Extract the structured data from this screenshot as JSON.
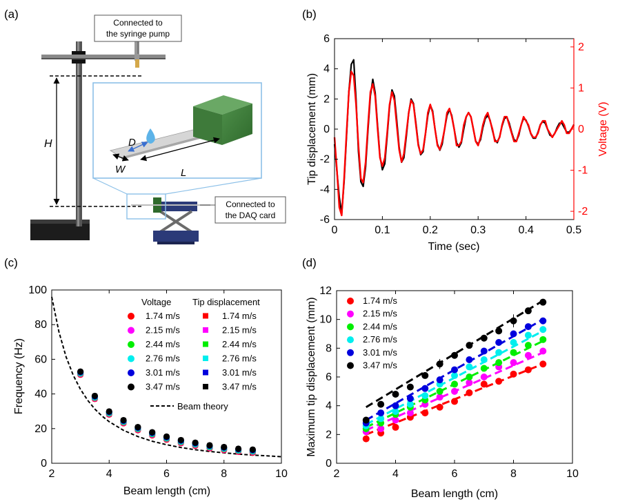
{
  "panel_labels": [
    "(a)",
    "(b)",
    "(c)",
    "(d)"
  ],
  "panel_a": {
    "callout_pump": [
      "Connected to",
      "the syringe pump"
    ],
    "callout_daq": [
      "Connected to",
      "the DAQ card"
    ],
    "label_H": "H",
    "label_D": "D",
    "label_L": "L",
    "label_W": "W"
  },
  "colors": {
    "red": "#ff0000",
    "magenta": "#ff00ff",
    "green": "#00ee00",
    "cyan": "#00eeee",
    "blue": "#0000dd",
    "black": "#000000"
  },
  "chart_data": [
    {
      "panel": "(b)",
      "type": "line",
      "xlabel": "Time (sec)",
      "ylabel": "Tip displacement (mm)",
      "ylabel_right": "Voltage (V)",
      "xlim": [
        0,
        0.5
      ],
      "ylim": [
        -6,
        6
      ],
      "ylim_right": [
        -2.2,
        2.2
      ],
      "xticks": [
        "0",
        "0.1",
        "0.2",
        "0.3",
        "0.4",
        "0.5"
      ],
      "yticks": [
        "-6",
        "-4",
        "-2",
        "0",
        "2",
        "4",
        "6"
      ],
      "yticks_right": [
        "-2",
        "-1",
        "0",
        "1",
        "2"
      ],
      "series": [
        {
          "axis": "left",
          "color": "#000000",
          "x": [
            0,
            0.005,
            0.01,
            0.015,
            0.02,
            0.025,
            0.03,
            0.035,
            0.04,
            0.045,
            0.05,
            0.055,
            0.06,
            0.065,
            0.07,
            0.075,
            0.08,
            0.085,
            0.09,
            0.095,
            0.1,
            0.105,
            0.11,
            0.115,
            0.12,
            0.125,
            0.13,
            0.135,
            0.14,
            0.145,
            0.15,
            0.155,
            0.16,
            0.165,
            0.17,
            0.175,
            0.18,
            0.185,
            0.19,
            0.195,
            0.2,
            0.205,
            0.21,
            0.215,
            0.22,
            0.225,
            0.23,
            0.235,
            0.24,
            0.245,
            0.25,
            0.255,
            0.26,
            0.265,
            0.27,
            0.275,
            0.28,
            0.285,
            0.29,
            0.295,
            0.3,
            0.305,
            0.31,
            0.315,
            0.32,
            0.325,
            0.33,
            0.335,
            0.34,
            0.345,
            0.35,
            0.355,
            0.36,
            0.365,
            0.37,
            0.375,
            0.38,
            0.385,
            0.39,
            0.395,
            0.4,
            0.405,
            0.41,
            0.415,
            0.42,
            0.425,
            0.43,
            0.435,
            0.44,
            0.445,
            0.45,
            0.455,
            0.46,
            0.465,
            0.47,
            0.475,
            0.48,
            0.485,
            0.49,
            0.495,
            0.5
          ],
          "y": [
            -1.0,
            -2.8,
            -4.5,
            -5.6,
            -3.5,
            -0.5,
            2.5,
            4.3,
            4.6,
            2.0,
            -1.5,
            -3.5,
            -3.8,
            -2.5,
            0.0,
            2.2,
            3.3,
            2.4,
            0.2,
            -1.8,
            -2.7,
            -2.3,
            -0.5,
            1.5,
            2.6,
            2.2,
            0.6,
            -1.2,
            -2.2,
            -1.9,
            -0.5,
            1.1,
            2.0,
            1.7,
            0.4,
            -1.0,
            -1.7,
            -1.5,
            -0.3,
            0.9,
            1.6,
            1.2,
            0.0,
            -1.0,
            -1.4,
            -1.0,
            0.0,
            0.9,
            1.3,
            0.9,
            0.0,
            -0.9,
            -1.2,
            -0.9,
            0.0,
            0.8,
            1.1,
            0.8,
            0.0,
            -0.8,
            -1.0,
            -0.7,
            0.1,
            0.7,
            0.9,
            0.6,
            -0.1,
            -0.7,
            -0.9,
            -0.5,
            0.2,
            0.7,
            0.8,
            0.4,
            -0.2,
            -0.7,
            -0.8,
            -0.4,
            0.3,
            0.7,
            0.6,
            0.2,
            -0.3,
            -0.6,
            -0.6,
            -0.2,
            0.3,
            0.5,
            0.4,
            0.0,
            -0.4,
            -0.5,
            -0.3,
            0.1,
            0.4,
            0.4,
            0.1,
            -0.2,
            -0.2,
            0.0,
            0.3
          ]
        },
        {
          "axis": "right",
          "color": "#ff0000",
          "x": [
            0,
            0.005,
            0.01,
            0.015,
            0.02,
            0.025,
            0.03,
            0.035,
            0.04,
            0.045,
            0.05,
            0.055,
            0.06,
            0.065,
            0.07,
            0.075,
            0.08,
            0.085,
            0.09,
            0.095,
            0.1,
            0.105,
            0.11,
            0.115,
            0.12,
            0.125,
            0.13,
            0.135,
            0.14,
            0.145,
            0.15,
            0.155,
            0.16,
            0.165,
            0.17,
            0.175,
            0.18,
            0.185,
            0.19,
            0.195,
            0.2,
            0.205,
            0.21,
            0.215,
            0.22,
            0.225,
            0.23,
            0.235,
            0.24,
            0.245,
            0.25,
            0.255,
            0.26,
            0.265,
            0.27,
            0.275,
            0.28,
            0.285,
            0.29,
            0.295,
            0.3,
            0.305,
            0.31,
            0.315,
            0.32,
            0.325,
            0.33,
            0.335,
            0.34,
            0.345,
            0.35,
            0.355,
            0.36,
            0.365,
            0.37,
            0.375,
            0.38,
            0.385,
            0.39,
            0.395,
            0.4,
            0.405,
            0.41,
            0.415,
            0.42,
            0.425,
            0.43,
            0.435,
            0.44,
            0.445,
            0.45,
            0.455,
            0.46,
            0.465,
            0.47,
            0.475,
            0.48,
            0.485,
            0.49,
            0.495,
            0.5
          ],
          "y": [
            -0.2,
            -1.0,
            -1.9,
            -2.1,
            -1.2,
            -0.1,
            0.9,
            1.4,
            1.3,
            0.6,
            -0.4,
            -1.2,
            -1.3,
            -0.8,
            0.1,
            0.9,
            1.1,
            0.8,
            0.0,
            -0.7,
            -0.9,
            -0.7,
            -0.1,
            0.6,
            0.9,
            0.7,
            0.1,
            -0.5,
            -0.8,
            -0.6,
            -0.1,
            0.4,
            0.7,
            0.6,
            0.1,
            -0.4,
            -0.6,
            -0.5,
            -0.1,
            0.4,
            0.6,
            0.4,
            0.0,
            -0.4,
            -0.5,
            -0.3,
            0.0,
            0.4,
            0.5,
            0.3,
            0.0,
            -0.4,
            -0.4,
            -0.3,
            0.1,
            0.3,
            0.4,
            0.3,
            0.0,
            -0.3,
            -0.4,
            -0.2,
            0.1,
            0.3,
            0.4,
            0.2,
            0.0,
            -0.3,
            -0.3,
            -0.2,
            0.1,
            0.3,
            0.3,
            0.1,
            -0.1,
            -0.3,
            -0.3,
            -0.1,
            0.1,
            0.3,
            0.2,
            0.1,
            -0.1,
            -0.2,
            -0.2,
            -0.1,
            0.1,
            0.2,
            0.2,
            0.0,
            -0.1,
            -0.2,
            -0.1,
            0.0,
            0.1,
            0.2,
            0.1,
            -0.1,
            -0.1,
            0.0,
            0.1
          ]
        }
      ]
    },
    {
      "panel": "(c)",
      "type": "scatter",
      "xlabel": "Beam length (cm)",
      "ylabel": "Frequency (Hz)",
      "xlim": [
        2,
        10
      ],
      "ylim": [
        0,
        100
      ],
      "xticks": [
        "2",
        "4",
        "6",
        "8",
        "10"
      ],
      "yticks": [
        "0",
        "20",
        "40",
        "60",
        "80",
        "100"
      ],
      "legend_headers": [
        "Voltage",
        "Tip displacement"
      ],
      "legend_speeds": [
        "1.74 m/s",
        "2.15 m/s",
        "2.44 m/s",
        "2.76 m/s",
        "3.01 m/s",
        "3.47 m/s"
      ],
      "beam_theory_label": "Beam theory",
      "beam_theory": {
        "x": [
          2,
          2.25,
          2.5,
          2.75,
          3,
          3.25,
          3.5,
          3.75,
          4,
          4.5,
          5,
          5.5,
          6,
          6.5,
          7,
          7.5,
          8,
          8.5,
          9,
          9.5,
          10
        ],
        "y": [
          96,
          75.9,
          61.4,
          50.8,
          42.7,
          36.4,
          31.3,
          27.3,
          24.0,
          19.0,
          15.4,
          12.7,
          10.7,
          9.1,
          7.8,
          6.8,
          6.0,
          5.3,
          4.7,
          4.3,
          3.8
        ]
      },
      "x": [
        3,
        3.5,
        4,
        4.5,
        5,
        5.5,
        6,
        6.5,
        7,
        7.5,
        8,
        8.5,
        9
      ],
      "values": [
        52,
        38,
        29,
        24,
        20,
        17,
        14.5,
        12.5,
        11,
        9.5,
        8.5,
        7.5,
        7
      ]
    },
    {
      "panel": "(d)",
      "type": "scatter",
      "xlabel": "Beam length (cm)",
      "ylabel": "Maximum tip displacement (mm)",
      "xlim": [
        2,
        10
      ],
      "ylim": [
        0,
        12
      ],
      "xticks": [
        "2",
        "4",
        "6",
        "8",
        "10"
      ],
      "yticks": [
        "0",
        "2",
        "4",
        "6",
        "8",
        "10",
        "12"
      ],
      "x": [
        3,
        3.5,
        4,
        4.5,
        5,
        5.5,
        6,
        6.5,
        7,
        7.5,
        8,
        8.5,
        9
      ],
      "series": [
        {
          "name": "1.74 m/s",
          "color": "#ff0000",
          "values": [
            1.7,
            2.1,
            2.5,
            3.2,
            3.5,
            3.9,
            4.3,
            4.9,
            5.5,
            5.7,
            6.2,
            6.5,
            6.9
          ],
          "fit": [
            2.0,
            6.9
          ]
        },
        {
          "name": "2.15 m/s",
          "color": "#ff00ff",
          "values": [
            2.2,
            2.4,
            3.0,
            3.5,
            4.1,
            4.6,
            5.0,
            5.6,
            6.0,
            6.7,
            7.0,
            7.5,
            7.8
          ],
          "fit": [
            2.3,
            7.7
          ]
        },
        {
          "name": "2.44 m/s",
          "color": "#00ee00",
          "values": [
            2.4,
            2.8,
            3.4,
            3.9,
            4.4,
            5.0,
            5.5,
            6.0,
            6.6,
            7.0,
            7.7,
            8.2,
            8.6
          ],
          "fit": [
            2.5,
            8.5
          ]
        },
        {
          "name": "2.76 m/s",
          "color": "#00eeee",
          "values": [
            2.6,
            3.1,
            3.6,
            4.1,
            4.7,
            5.5,
            6.1,
            6.7,
            7.2,
            7.7,
            8.4,
            8.9,
            9.3
          ],
          "fit": [
            2.7,
            9.2
          ]
        },
        {
          "name": "3.01 m/s",
          "color": "#0000dd",
          "values": [
            2.8,
            3.5,
            4.0,
            4.5,
            5.2,
            5.8,
            6.5,
            7.2,
            7.8,
            8.4,
            9.0,
            9.5,
            9.9
          ],
          "fit": [
            3.0,
            10.0
          ]
        },
        {
          "name": "3.47 m/s",
          "color": "#000000",
          "values": [
            3.0,
            4.1,
            4.8,
            5.3,
            6.1,
            6.9,
            7.5,
            8.2,
            8.7,
            9.2,
            9.9,
            10.6,
            11.2
          ],
          "fit": [
            3.9,
            11.3
          ]
        }
      ]
    }
  ]
}
